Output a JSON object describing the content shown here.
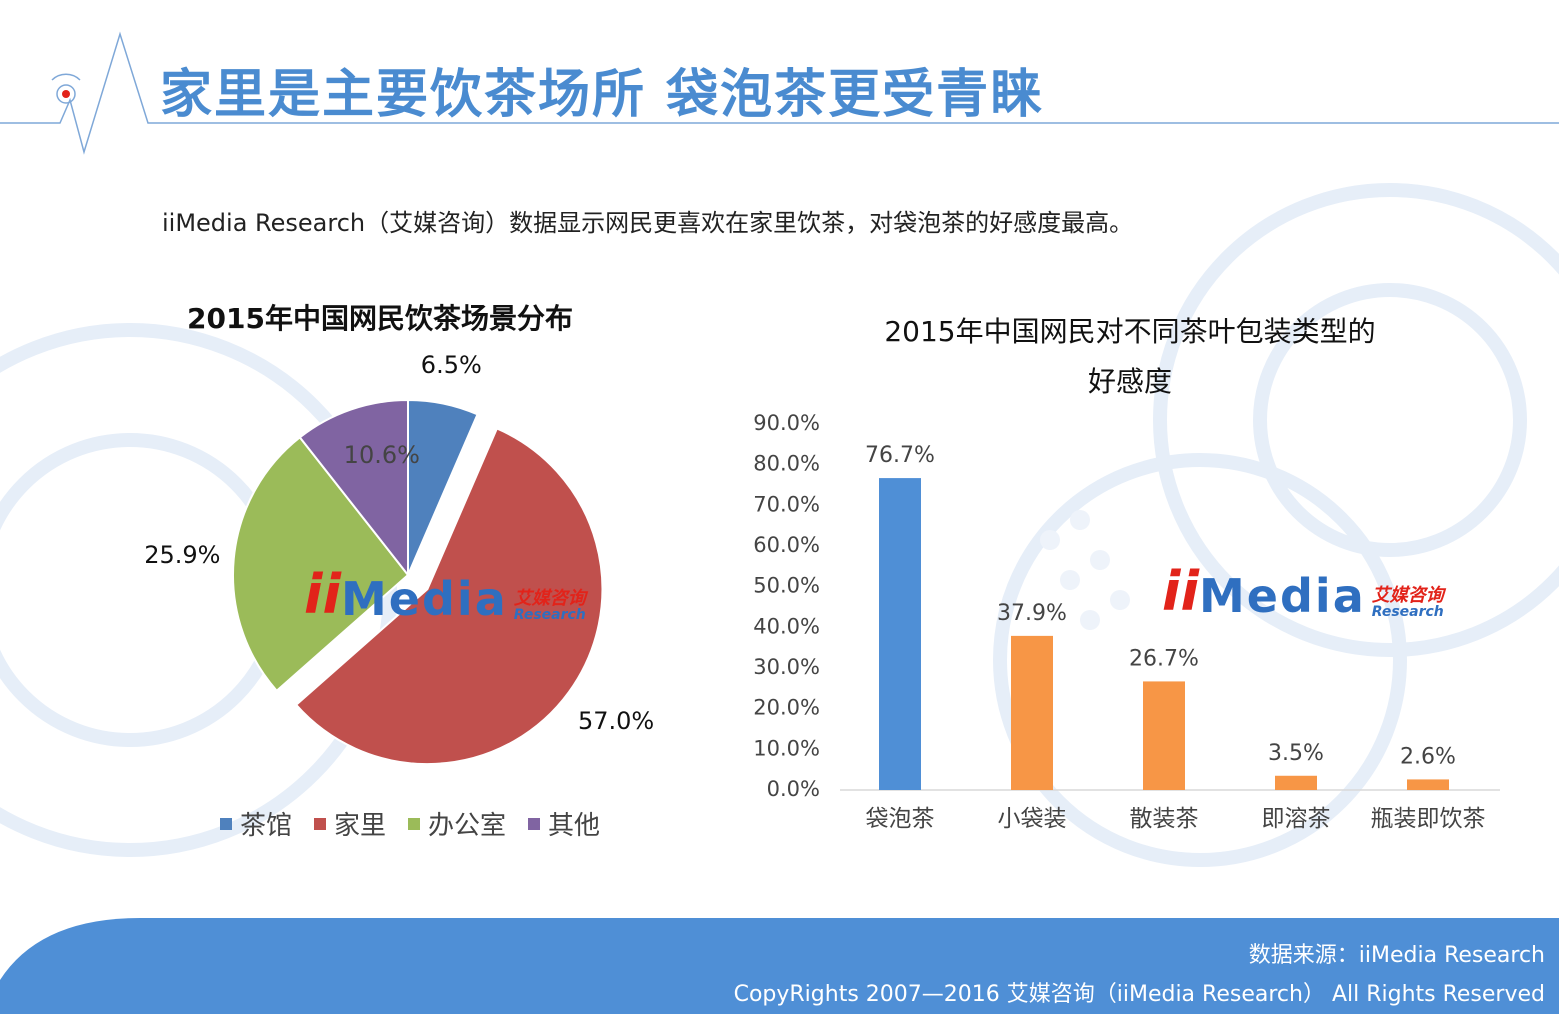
{
  "header": {
    "title": "家里是主要饮茶场所    袋泡茶更受青睐"
  },
  "subtitle": "iiMedia Research（艾媒咨询）数据显示网民更喜欢在家里饮茶，对袋泡茶的好感度最高。",
  "colors": {
    "brand_blue": "#4a8bd0",
    "pie_teahouse": "#4f81bd",
    "pie_home": "#c0504d",
    "pie_office": "#9bbb59",
    "pie_other": "#8064a2",
    "bar_highlight": "#4f8fd6",
    "bar_normal": "#f79646",
    "footer": "#4f8fd6"
  },
  "logo": {
    "ii": "ii",
    "media": "Media",
    "cn": "艾媒咨询",
    "en": "Research"
  },
  "chart_data": [
    {
      "type": "pie",
      "title": "2015年中国网民饮茶场景分布",
      "categories": [
        "茶馆",
        "家里",
        "办公室",
        "其他"
      ],
      "values": [
        6.5,
        57.0,
        25.9,
        10.6
      ],
      "labels": [
        "6.5%",
        "57.0%",
        "25.9%",
        "10.6%"
      ],
      "legend_placement": "bottom"
    },
    {
      "type": "bar",
      "title_line1": "2015年中国网民对不同茶叶包装类型的",
      "title_line2": "好感度",
      "categories": [
        "袋泡茶",
        "小袋装",
        "散装茶",
        "即溶茶",
        "瓶装即饮茶"
      ],
      "values": [
        76.7,
        37.9,
        26.7,
        3.5,
        2.6
      ],
      "labels": [
        "76.7%",
        "37.9%",
        "26.7%",
        "3.5%",
        "2.6%"
      ],
      "ylim": [
        0,
        90
      ],
      "yticks": [
        "0.0%",
        "10.0%",
        "20.0%",
        "30.0%",
        "40.0%",
        "50.0%",
        "60.0%",
        "70.0%",
        "80.0%",
        "90.0%"
      ],
      "grid": false
    }
  ],
  "footer": {
    "source": "数据来源：iiMedia Research",
    "copyright": "CopyRights 2007—2016 艾媒咨询（iiMedia Research） All Rights Reserved"
  }
}
